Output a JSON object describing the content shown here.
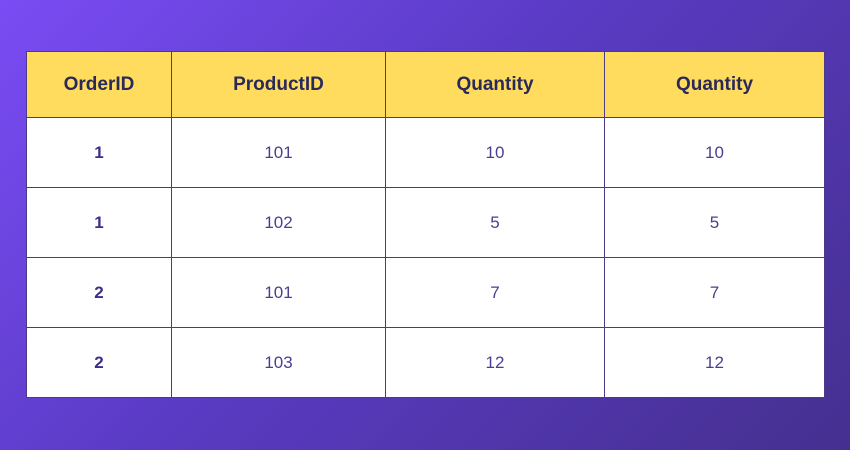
{
  "table": {
    "headers": [
      "OrderID",
      "ProductID",
      "Quantity",
      "Quantity"
    ],
    "rows": [
      [
        "1",
        "101",
        "10",
        "10"
      ],
      [
        "1",
        "102",
        "5",
        "5"
      ],
      [
        "2",
        "101",
        "7",
        "7"
      ],
      [
        "2",
        "103",
        "12",
        "12"
      ]
    ]
  },
  "colors": {
    "header_bg": "#ffdc5e",
    "border": "#4b3b86",
    "background_start": "#7a4cf4",
    "background_end": "#45308f"
  }
}
